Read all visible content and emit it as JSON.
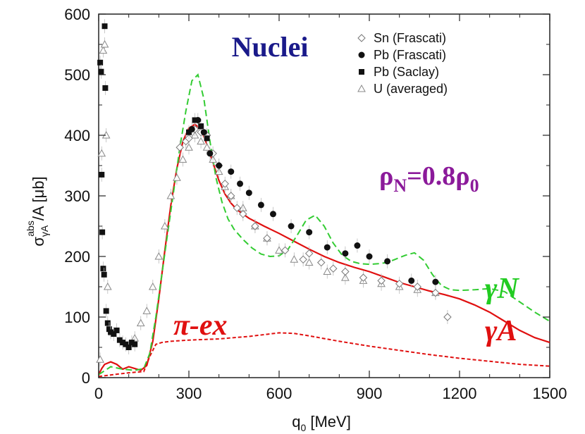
{
  "chart_data": {
    "type": "scatter",
    "title": "Nuclei",
    "xlabel": "q₀ [MeV]",
    "ylabel": "σγA abs/A [μb]",
    "xlim": [
      0,
      1500
    ],
    "ylim": [
      0,
      600
    ],
    "x_ticks": [
      "0",
      "300",
      "600",
      "900",
      "1200",
      "1500"
    ],
    "y_ticks": [
      "0",
      "100",
      "200",
      "300",
      "400",
      "500",
      "600"
    ],
    "grid": false,
    "legend_position": "top-right",
    "legend": [
      {
        "label": "Sn (Frascati)",
        "marker": "open-diamond"
      },
      {
        "label": "Pb (Frascati)",
        "marker": "filled-circle"
      },
      {
        "label": "Pb (Saclay)",
        "marker": "filled-square"
      },
      {
        "label": "U  (averaged)",
        "marker": "open-triangle"
      }
    ],
    "annotations": {
      "density": {
        "main": "ρ",
        "sub1": "N",
        "mid": "=0.8ρ",
        "sub2": "0",
        "color": "#8b1a9a"
      },
      "pi_ex": {
        "text": "π-ex",
        "color": "#e01010"
      },
      "gamma_n": {
        "text": "γN",
        "color": "#22cc22"
      },
      "gamma_a": {
        "text": "γA",
        "color": "#e01010"
      }
    },
    "title_color": "#1a1a8a",
    "series": [
      {
        "name": "γA",
        "style": "solid",
        "color": "#e01010",
        "x": [
          0,
          10,
          20,
          40,
          60,
          80,
          100,
          120,
          140,
          160,
          180,
          200,
          220,
          240,
          260,
          280,
          300,
          320,
          340,
          360,
          380,
          400,
          420,
          440,
          460,
          480,
          500,
          550,
          600,
          650,
          700,
          750,
          800,
          850,
          900,
          950,
          1000,
          1050,
          1100,
          1150,
          1200,
          1250,
          1300,
          1350,
          1400,
          1450,
          1500
        ],
        "y": [
          5,
          15,
          22,
          26,
          22,
          14,
          18,
          15,
          12,
          20,
          60,
          130,
          210,
          285,
          345,
          390,
          412,
          418,
          410,
          385,
          355,
          325,
          303,
          288,
          277,
          270,
          263,
          250,
          238,
          225,
          212,
          200,
          190,
          182,
          175,
          166,
          157,
          150,
          143,
          137,
          130,
          120,
          108,
          93,
          78,
          66,
          58
        ]
      },
      {
        "name": "γN",
        "style": "dashed",
        "color": "#33cc33",
        "x": [
          0,
          40,
          80,
          120,
          150,
          170,
          190,
          210,
          230,
          250,
          270,
          290,
          310,
          330,
          350,
          370,
          390,
          410,
          430,
          450,
          480,
          510,
          540,
          570,
          600,
          630,
          660,
          690,
          720,
          750,
          780,
          810,
          840,
          870,
          900,
          930,
          960,
          990,
          1020,
          1050,
          1080,
          1110,
          1140,
          1170,
          1200,
          1250,
          1300,
          1350,
          1400,
          1450,
          1500
        ],
        "y": [
          5,
          18,
          14,
          12,
          15,
          40,
          100,
          170,
          240,
          310,
          380,
          440,
          490,
          500,
          460,
          390,
          330,
          290,
          262,
          245,
          228,
          214,
          204,
          200,
          201,
          212,
          235,
          260,
          268,
          250,
          222,
          202,
          192,
          188,
          187,
          188,
          190,
          196,
          202,
          206,
          194,
          170,
          152,
          145,
          144,
          145,
          147,
          142,
          125,
          108,
          93
        ]
      },
      {
        "name": "π-ex",
        "style": "dashed",
        "color": "#e01010",
        "x": [
          0,
          100,
          150,
          170,
          190,
          210,
          240,
          300,
          400,
          500,
          600,
          650,
          700,
          800,
          900,
          1000,
          1100,
          1200,
          1300,
          1400,
          1500
        ],
        "y": [
          2,
          8,
          10,
          35,
          55,
          58,
          60,
          62,
          64,
          68,
          74,
          73,
          69,
          60,
          52,
          45,
          38,
          32,
          27,
          22,
          19
        ]
      }
    ],
    "points": {
      "Sn (Frascati)": {
        "x": [
          270,
          290,
          300,
          320,
          340,
          360,
          380,
          400,
          420,
          440,
          460,
          480,
          520,
          560,
          620,
          680,
          700,
          740,
          780,
          820,
          880,
          940,
          1000,
          1060,
          1120,
          1160
        ],
        "y": [
          380,
          390,
          395,
          410,
          405,
          400,
          370,
          350,
          320,
          300,
          280,
          270,
          250,
          230,
          210,
          195,
          205,
          190,
          180,
          175,
          165,
          160,
          155,
          150,
          140,
          100
        ]
      },
      "Pb (Frascati)": {
        "x": [
          310,
          330,
          350,
          370,
          400,
          440,
          470,
          500,
          540,
          580,
          640,
          700,
          760,
          820,
          860,
          900,
          960,
          1040,
          1120
        ],
        "y": [
          410,
          425,
          405,
          370,
          350,
          340,
          320,
          305,
          285,
          270,
          250,
          240,
          215,
          205,
          218,
          200,
          192,
          160,
          158
        ]
      },
      "Pb (Saclay)": {
        "x": [
          5,
          8,
          10,
          12,
          15,
          18,
          20,
          22,
          25,
          30,
          35,
          40,
          50,
          60,
          70,
          80,
          90,
          100,
          110,
          120,
          300,
          320,
          340,
          360
        ],
        "y": [
          520,
          505,
          335,
          240,
          180,
          170,
          580,
          478,
          110,
          90,
          80,
          75,
          72,
          78,
          62,
          58,
          55,
          50,
          58,
          55,
          405,
          425,
          415,
          395
        ]
      },
      "U  (averaged)": {
        "x": [
          5,
          10,
          15,
          20,
          25,
          30,
          120,
          140,
          160,
          180,
          200,
          220,
          240,
          260,
          280,
          300,
          320,
          340,
          360,
          380,
          400,
          420,
          440,
          480,
          520,
          560,
          600,
          650,
          700,
          760,
          820,
          880,
          940,
          1000,
          1060,
          1120
        ],
        "y": [
          30,
          370,
          540,
          550,
          400,
          150,
          65,
          90,
          110,
          150,
          200,
          250,
          300,
          330,
          360,
          380,
          400,
          390,
          380,
          360,
          340,
          315,
          300,
          280,
          250,
          230,
          210,
          195,
          190,
          175,
          165,
          160,
          155,
          150,
          145,
          140
        ]
      }
    }
  }
}
